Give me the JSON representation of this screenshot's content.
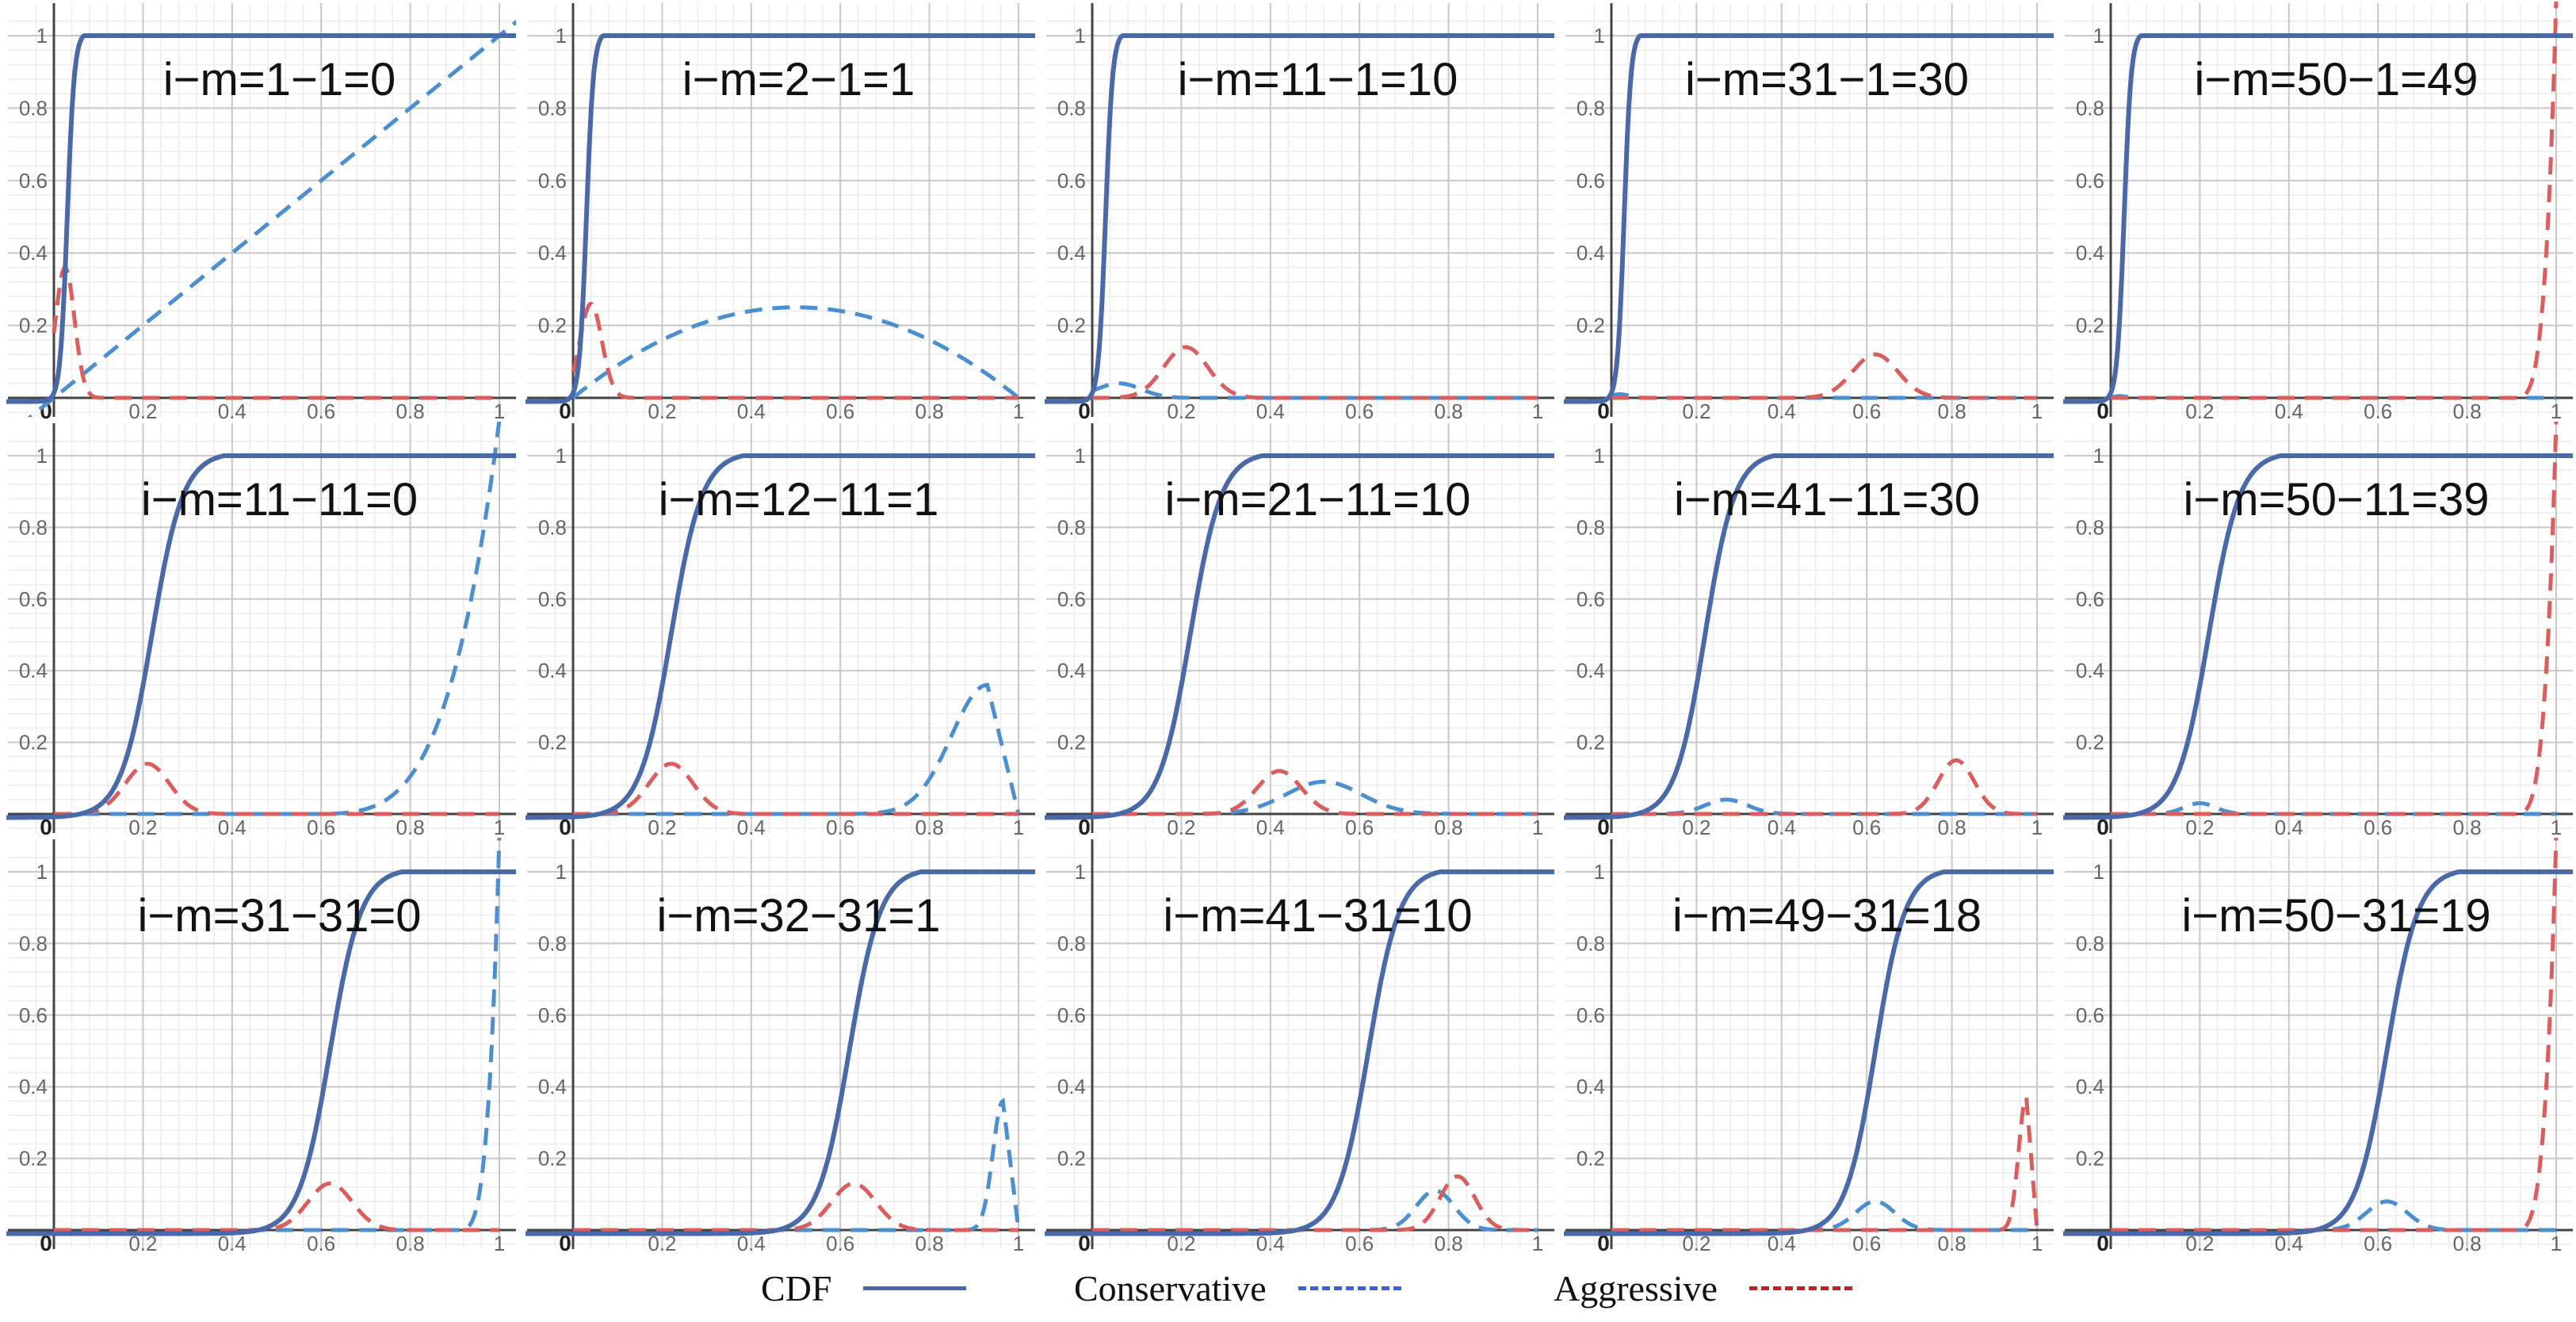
{
  "chart_data": {
    "type": "line",
    "x_range": [
      0,
      1
    ],
    "y_range": [
      0,
      1
    ],
    "xticks": [
      0,
      0.2,
      0.4,
      0.6,
      0.8,
      1
    ],
    "yticks": [
      0.2,
      0.4,
      0.6,
      0.8,
      1
    ],
    "xtick_labels": [
      "0",
      "0.2",
      "0.4",
      "0.6",
      "0.8",
      "1"
    ],
    "ytick_labels": [
      "0.2",
      "0.4",
      "0.6",
      "0.8",
      "1"
    ],
    "grid": true,
    "legend_position": "bottom",
    "legend": [
      {
        "label": "CDF",
        "color": "#4a69a8",
        "style": "solid"
      },
      {
        "label": "Conservative",
        "color": "#3a5fe0",
        "style": "dashed"
      },
      {
        "label": "Aggressive",
        "color": "#c42020",
        "style": "dashed"
      }
    ],
    "series_styles": {
      "cdf": {
        "color": "#4a69a8",
        "dash": "none"
      },
      "conservative": {
        "color": "#4c8fd1",
        "dash": "22 13"
      },
      "aggressive": {
        "color": "#dc5d5d",
        "dash": "22 13"
      }
    },
    "panels": [
      {
        "title": "i−m=1−1=0",
        "cdf_mid": 0.03,
        "cdf_width": 0.008,
        "conservative": {
          "kind": "line"
        },
        "aggressive": {
          "kind": "peak",
          "center": 0.025,
          "height": 0.36,
          "width": 0.03
        }
      },
      {
        "title": "i−m=2−1=1",
        "cdf_mid": 0.03,
        "cdf_width": 0.008,
        "conservative": {
          "kind": "arch",
          "height": 0.25
        },
        "aggressive": {
          "kind": "peak",
          "center": 0.04,
          "height": 0.26,
          "width": 0.035
        }
      },
      {
        "title": "i−m=11−1=10",
        "cdf_mid": 0.03,
        "cdf_width": 0.008,
        "conservative": {
          "kind": "peak",
          "center": 0.06,
          "height": 0.04,
          "width": 0.07
        },
        "aggressive": {
          "kind": "peak",
          "center": 0.21,
          "height": 0.14,
          "width": 0.07
        }
      },
      {
        "title": "i−m=31−1=30",
        "cdf_mid": 0.03,
        "cdf_width": 0.008,
        "conservative": {
          "kind": "peak",
          "center": 0.02,
          "height": 0.01,
          "width": 0.03
        },
        "aggressive": {
          "kind": "peak",
          "center": 0.62,
          "height": 0.12,
          "width": 0.075
        }
      },
      {
        "title": "i−m=50−1=49",
        "cdf_mid": 0.03,
        "cdf_width": 0.008,
        "conservative": {
          "kind": "peak",
          "center": 0.02,
          "height": 0.005,
          "width": 0.02
        },
        "aggressive": {
          "kind": "rise",
          "start": 0.9
        }
      },
      {
        "title": "i−m=11−11=0",
        "cdf_mid": 0.22,
        "cdf_width": 0.035,
        "conservative": {
          "kind": "rise",
          "start": 0.55
        },
        "aggressive": {
          "kind": "peak",
          "center": 0.21,
          "height": 0.14,
          "width": 0.07
        }
      },
      {
        "title": "i−m=12−11=1",
        "cdf_mid": 0.22,
        "cdf_width": 0.035,
        "conservative": {
          "kind": "spike",
          "center": 0.93,
          "height": 0.36,
          "spread": 0.18
        },
        "aggressive": {
          "kind": "peak",
          "center": 0.22,
          "height": 0.14,
          "width": 0.07
        }
      },
      {
        "title": "i−m=21−11=10",
        "cdf_mid": 0.22,
        "cdf_width": 0.035,
        "conservative": {
          "kind": "peak",
          "center": 0.52,
          "height": 0.09,
          "width": 0.12
        },
        "aggressive": {
          "kind": "peak",
          "center": 0.42,
          "height": 0.12,
          "width": 0.07
        }
      },
      {
        "title": "i−m=41−11=30",
        "cdf_mid": 0.22,
        "cdf_width": 0.035,
        "conservative": {
          "kind": "peak",
          "center": 0.27,
          "height": 0.04,
          "width": 0.07
        },
        "aggressive": {
          "kind": "peak",
          "center": 0.81,
          "height": 0.15,
          "width": 0.06
        }
      },
      {
        "title": "i−m=50−11=39",
        "cdf_mid": 0.22,
        "cdf_width": 0.035,
        "conservative": {
          "kind": "peak",
          "center": 0.2,
          "height": 0.03,
          "width": 0.05
        },
        "aggressive": {
          "kind": "rise",
          "start": 0.9
        }
      },
      {
        "title": "i−m=31−31=0",
        "cdf_mid": 0.62,
        "cdf_width": 0.035,
        "conservative": {
          "kind": "rise",
          "start": 0.9
        },
        "aggressive": {
          "kind": "peak",
          "center": 0.62,
          "height": 0.13,
          "width": 0.07
        }
      },
      {
        "title": "i−m=32−31=1",
        "cdf_mid": 0.62,
        "cdf_width": 0.035,
        "conservative": {
          "kind": "spike",
          "center": 0.965,
          "height": 0.36,
          "spread": 0.05
        },
        "aggressive": {
          "kind": "peak",
          "center": 0.63,
          "height": 0.13,
          "width": 0.07
        }
      },
      {
        "title": "i−m=41−31=10",
        "cdf_mid": 0.62,
        "cdf_width": 0.035,
        "conservative": {
          "kind": "peak",
          "center": 0.77,
          "height": 0.11,
          "width": 0.06
        },
        "aggressive": {
          "kind": "peak",
          "center": 0.82,
          "height": 0.15,
          "width": 0.055
        }
      },
      {
        "title": "i−m=49−31=18",
        "cdf_mid": 0.62,
        "cdf_width": 0.035,
        "conservative": {
          "kind": "peak",
          "center": 0.62,
          "height": 0.08,
          "width": 0.065
        },
        "aggressive": {
          "kind": "spike",
          "center": 0.975,
          "height": 0.37,
          "spread": 0.04
        }
      },
      {
        "title": "i−m=50−31=19",
        "cdf_mid": 0.62,
        "cdf_width": 0.035,
        "conservative": {
          "kind": "peak",
          "center": 0.62,
          "height": 0.08,
          "width": 0.065
        },
        "aggressive": {
          "kind": "rise",
          "start": 0.9
        }
      }
    ]
  }
}
